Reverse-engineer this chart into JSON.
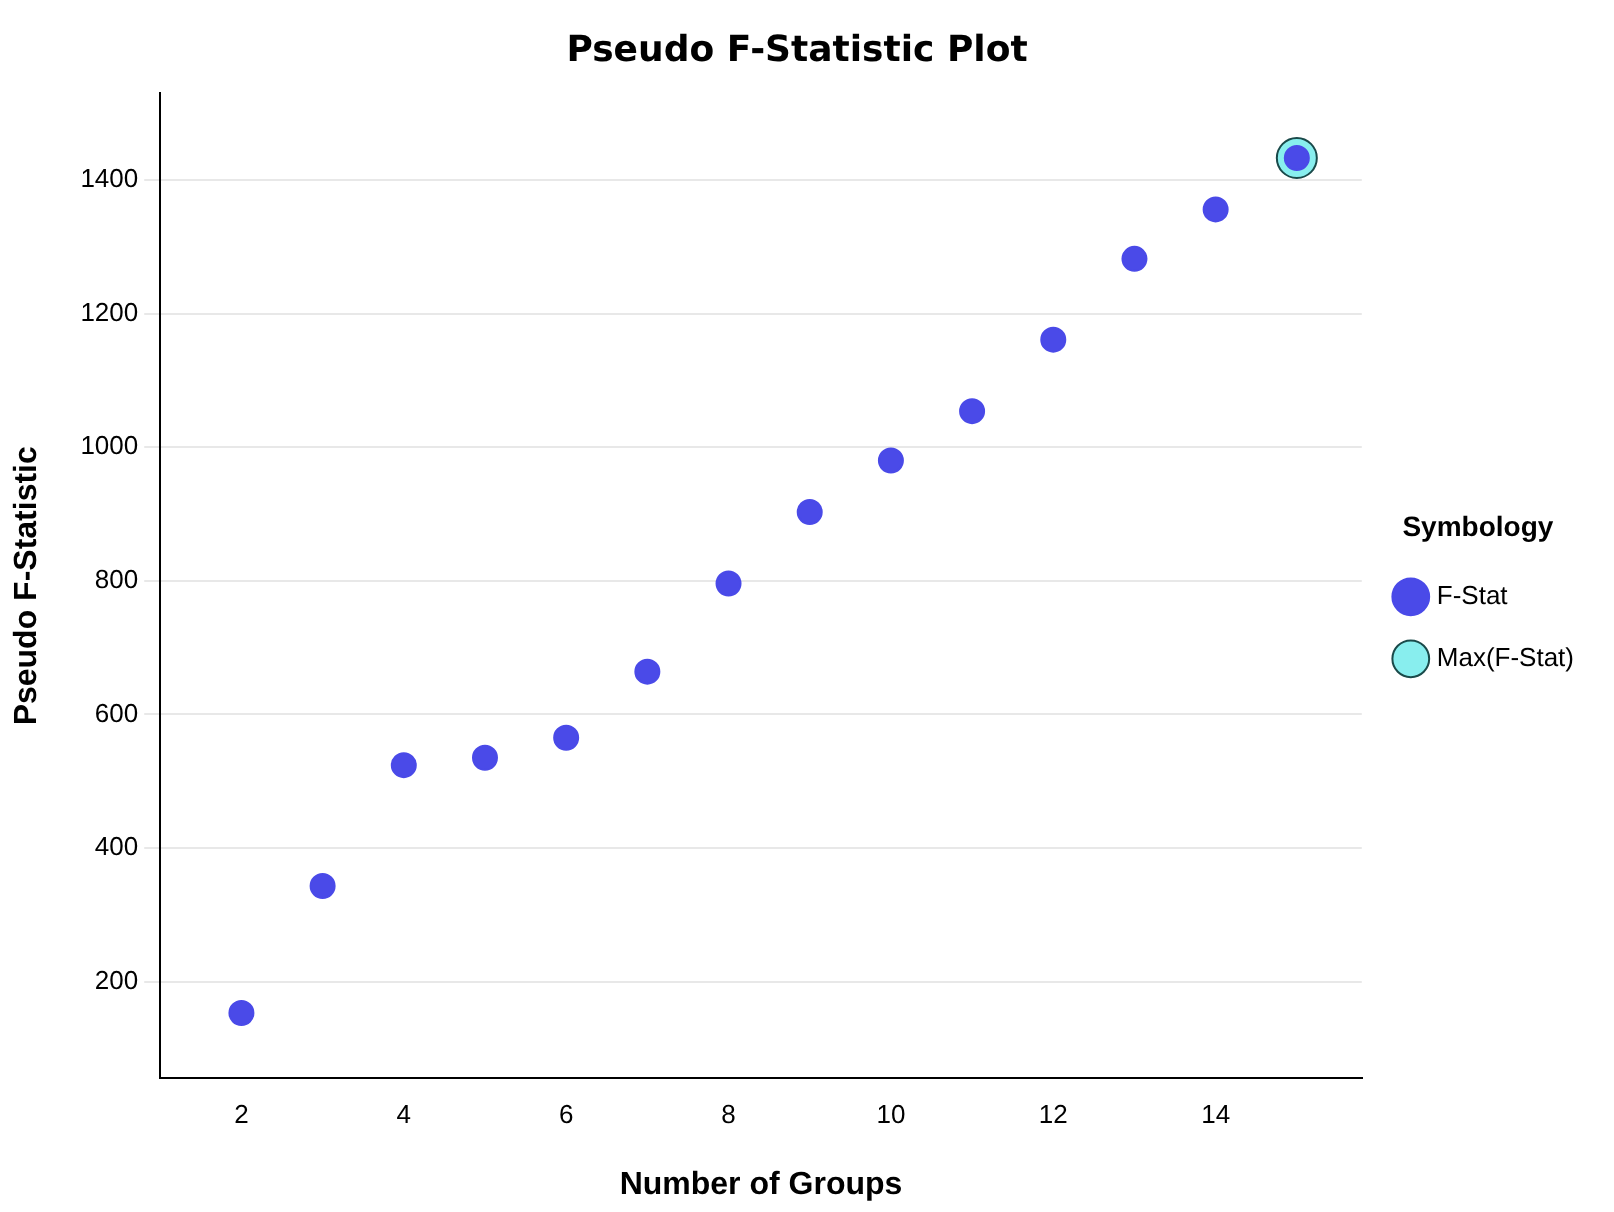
{
  "chart_data": {
    "type": "scatter",
    "title": "Pseudo F-Statistic Plot",
    "xlabel": "Number of Groups",
    "ylabel": "Pseudo F-Statistic",
    "legend_title": "Symbology",
    "xlim": [
      1,
      15.8
    ],
    "xticks": [
      2,
      4,
      6,
      8,
      10,
      12,
      14
    ],
    "ylim": [
      55,
      1530
    ],
    "yticks": [
      200,
      400,
      600,
      800,
      1000,
      1200,
      1400
    ],
    "grid": "y",
    "legend": "right",
    "marker": "circle",
    "series": [
      {
        "name": "F-Stat",
        "color": "#4a4ae8",
        "x": [
          2,
          3,
          4,
          5,
          6,
          7,
          8,
          9,
          10,
          11,
          12,
          13,
          14,
          15
        ],
        "values": [
          153,
          343,
          524,
          535,
          565,
          664,
          796,
          903,
          980,
          1054,
          1161,
          1282,
          1356,
          1433
        ]
      },
      {
        "name": "Max(F-Stat)",
        "color": "#88eeee",
        "x": [
          15
        ],
        "values": [
          1433
        ]
      }
    ]
  }
}
